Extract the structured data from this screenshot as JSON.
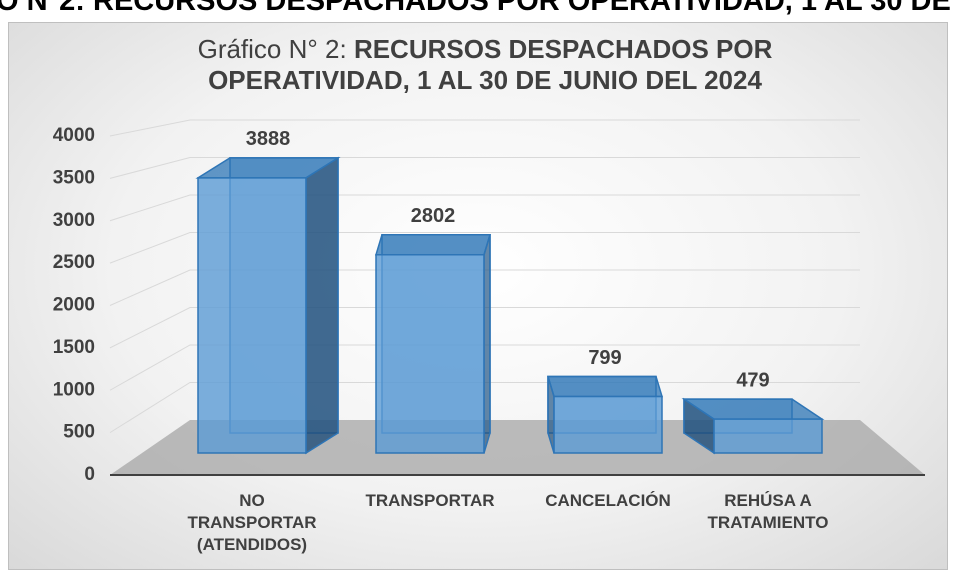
{
  "header_text": "O N°2: RECURSOS DESPACHADOS POR OPERATIVIDAD, 1 AL 30 DE",
  "chart_data": {
    "type": "bar3d",
    "title_prefix": "Gráfico N° 2:",
    "title": "RECURSOS DESPACHADOS POR OPERATIVIDAD, 1 AL 30 DE JUNIO DEL 2024",
    "categories": [
      "NO TRANSPORTAR (ATENDIDOS)",
      "TRANSPORTAR",
      "CANCELACIÓN",
      "REHÚSA A TRATAMIENTO"
    ],
    "values": [
      3888,
      2802,
      799,
      479
    ],
    "color": "#5b9bd5",
    "ylim": [
      0,
      4000
    ],
    "yticks": [
      0,
      500,
      1000,
      1500,
      2000,
      2500,
      3000,
      3500,
      4000
    ],
    "grid": true
  }
}
